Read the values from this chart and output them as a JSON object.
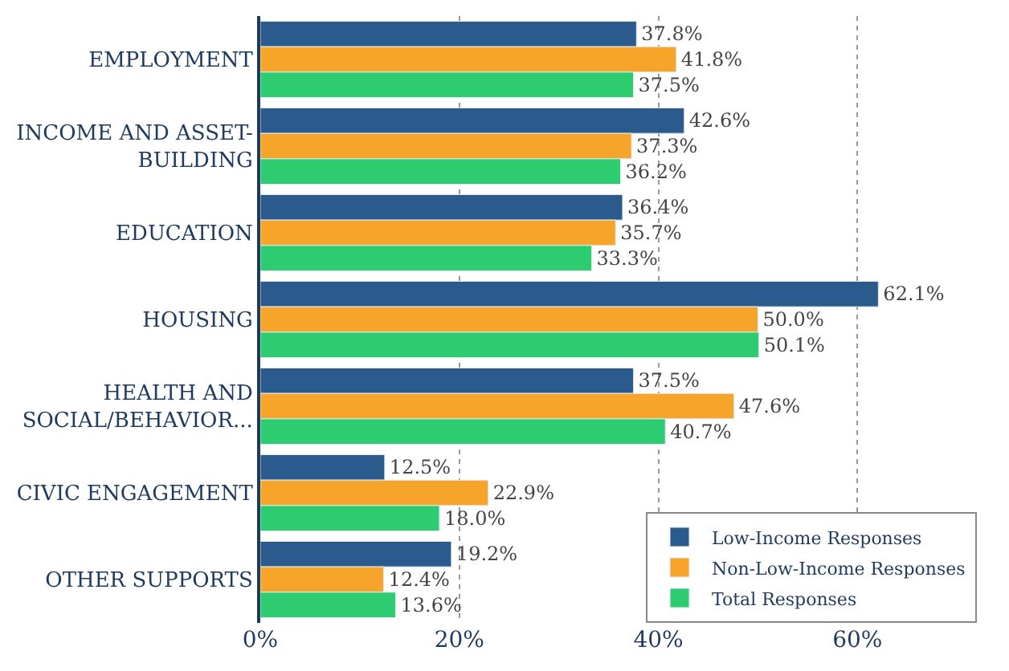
{
  "chart_data": {
    "type": "bar",
    "orientation": "horizontal",
    "categories": [
      "EMPLOYMENT",
      "INCOME AND ASSET-BUILDING",
      "EDUCATION",
      "HOUSING",
      "HEALTH AND SOCIAL/BEHAVIOR...",
      "CIVIC ENGAGEMENT",
      "OTHER SUPPORTS"
    ],
    "series": [
      {
        "name": "Low-Income Responses",
        "color": "#2b5a8c",
        "values": [
          37.8,
          42.6,
          36.4,
          62.1,
          37.5,
          12.5,
          19.2
        ],
        "value_labels": [
          "37.8%",
          "42.6%",
          "36.4%",
          "62.1%",
          "37.5%",
          "12.5%",
          "19.2%"
        ]
      },
      {
        "name": "Non-Low-Income Responses",
        "color": "#f7a52a",
        "values": [
          41.8,
          37.3,
          35.7,
          50.0,
          47.6,
          22.9,
          12.4
        ],
        "value_labels": [
          "41.8%",
          "37.3%",
          "35.7%",
          "50.0%",
          "47.6%",
          "22.9%",
          "12.4%"
        ]
      },
      {
        "name": "Total Responses",
        "color": "#2ecc71",
        "values": [
          37.5,
          36.2,
          33.3,
          50.1,
          40.7,
          18.0,
          13.6
        ],
        "value_labels": [
          "37.5%",
          "36.2%",
          "33.3%",
          "50.1%",
          "40.7%",
          "18.0%",
          "13.6%"
        ]
      }
    ],
    "xlim": [
      0,
      72
    ],
    "xticks": [
      {
        "value": 0,
        "label": "0%"
      },
      {
        "value": 20,
        "label": "20%"
      },
      {
        "value": 40,
        "label": "40%"
      },
      {
        "value": 60,
        "label": "60%"
      }
    ],
    "grid": "x",
    "legend": "bottom right"
  }
}
